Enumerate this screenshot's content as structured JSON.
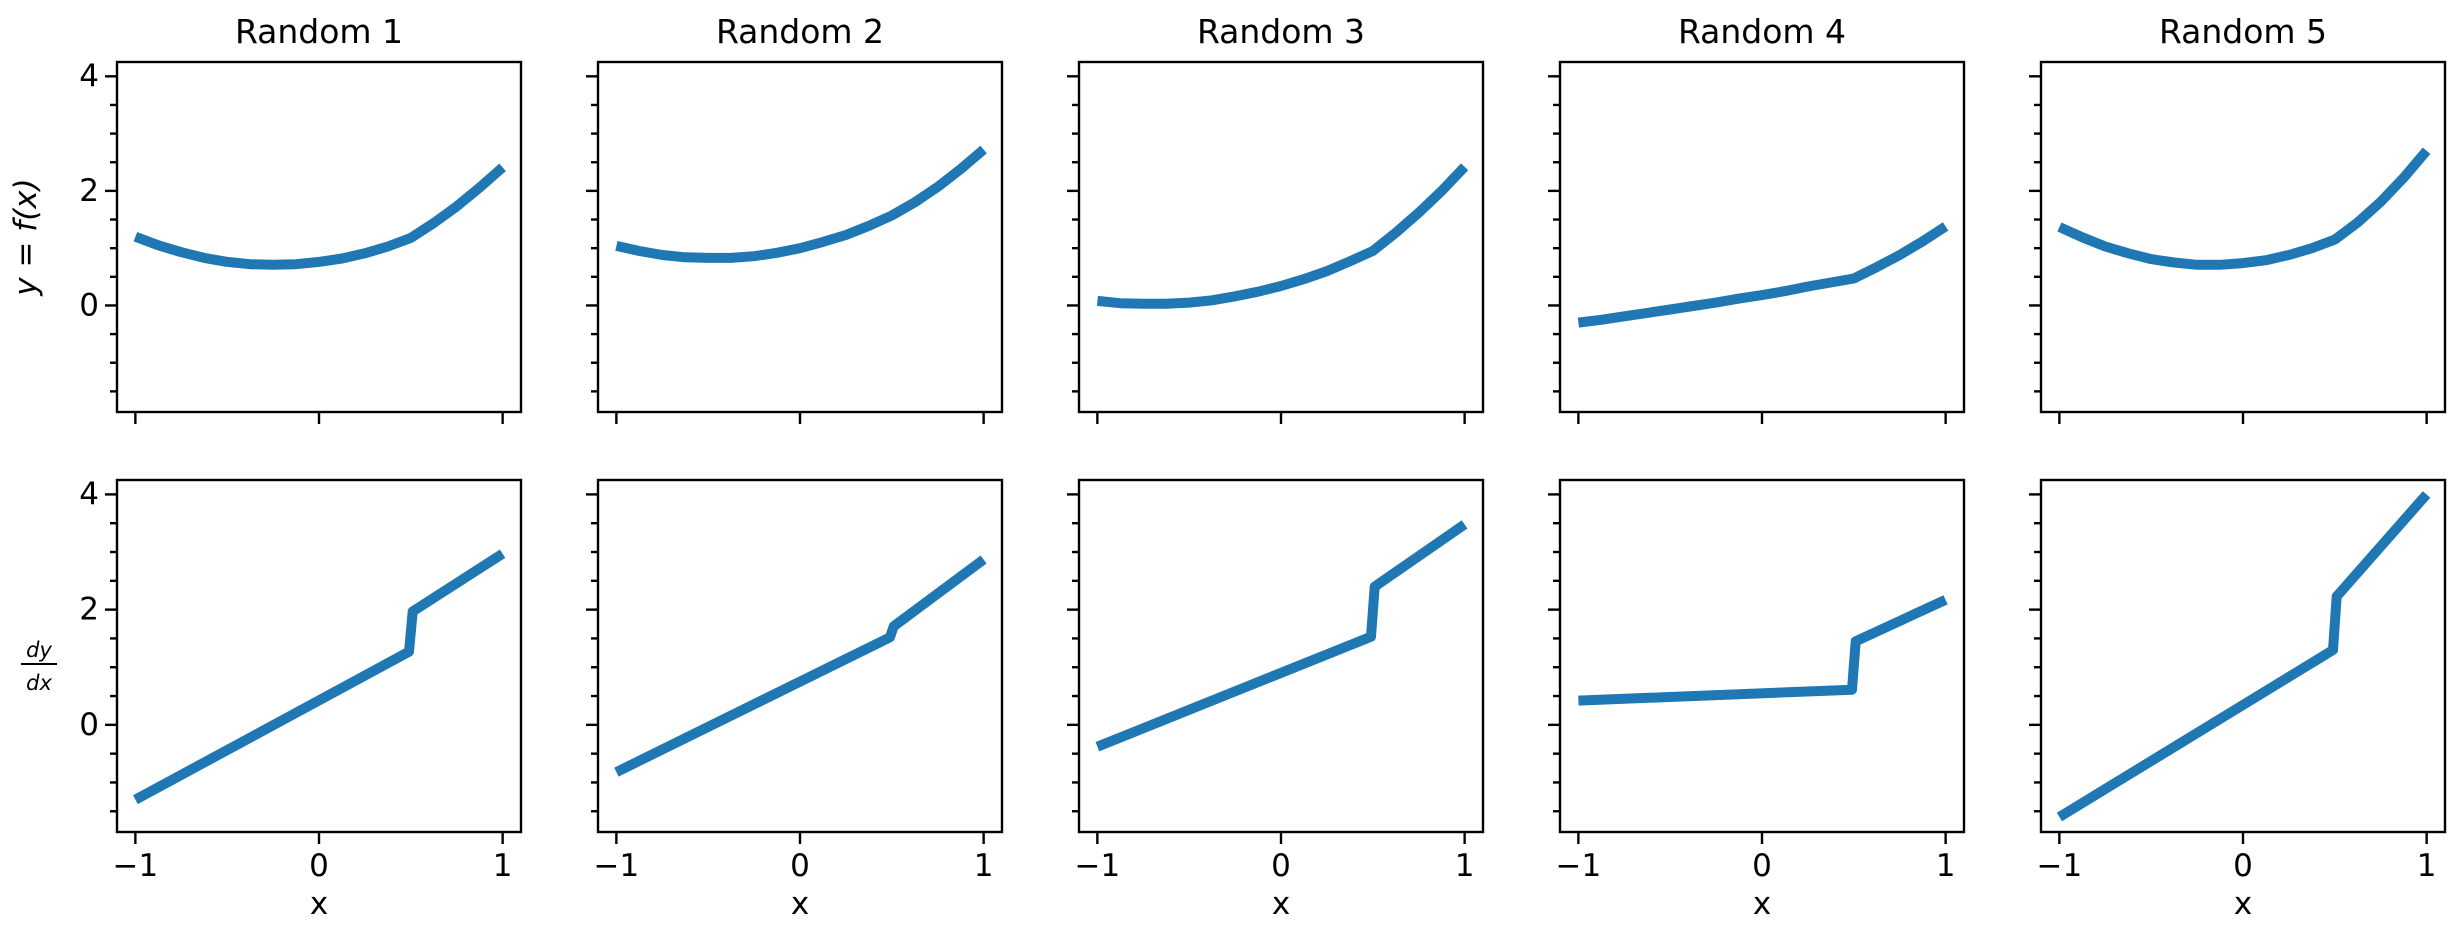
{
  "figure": {
    "background": "#ffffff",
    "line_color": "#1f77b4",
    "axis_color": "#000000",
    "text_color": "#000000"
  },
  "chart_data": {
    "type": "line",
    "grid_layout": "2 rows x 5 columns, shared x and y axes, no gridlines, no legend",
    "xlim": [
      -1.1,
      1.1
    ],
    "ylim": [
      -1.86,
      4.25
    ],
    "x_ticks": [
      -1,
      0,
      1
    ],
    "x_tick_labels": [
      "−1",
      "0",
      "1"
    ],
    "y_ticks": [
      0,
      2,
      4
    ],
    "y_tick_labels": [
      "0",
      "2",
      "4"
    ],
    "y_minor_ticks": [
      -1.5,
      -1.0,
      -0.5,
      0.5,
      1.0,
      1.5,
      2.5,
      3.0,
      3.5
    ],
    "xlabel": "x",
    "ylabel_top": "y = f(x)",
    "ylabel_bottom": "dy/dx",
    "ylabel_bottom_numerator": "dy",
    "ylabel_bottom_denominator": "dx",
    "f_x": [
      -1,
      -0.875,
      -0.75,
      -0.625,
      -0.5,
      -0.375,
      -0.25,
      -0.125,
      0,
      0.125,
      0.25,
      0.375,
      0.5,
      0.625,
      0.75,
      0.875,
      1
    ],
    "df_x": [
      -1,
      0.49,
      0.51,
      1
    ],
    "columns": [
      {
        "title": "Random  1",
        "f_y": [
          1.2,
          1.05,
          0.93,
          0.83,
          0.76,
          0.72,
          0.71,
          0.72,
          0.76,
          0.82,
          0.91,
          1.03,
          1.18,
          1.44,
          1.73,
          2.06,
          2.41
        ],
        "df_y": [
          -1.3,
          1.27,
          1.97,
          2.97
        ]
      },
      {
        "title": "Random  2",
        "f_y": [
          1.04,
          0.95,
          0.88,
          0.84,
          0.83,
          0.83,
          0.86,
          0.92,
          1.0,
          1.11,
          1.23,
          1.39,
          1.57,
          1.8,
          2.07,
          2.38,
          2.72
        ],
        "df_y": [
          -0.82,
          1.52,
          1.71,
          2.87
        ]
      },
      {
        "title": "Random  3",
        "f_y": [
          0.08,
          0.04,
          0.03,
          0.03,
          0.05,
          0.09,
          0.16,
          0.24,
          0.34,
          0.46,
          0.6,
          0.77,
          0.95,
          1.27,
          1.62,
          2.0,
          2.42
        ],
        "df_y": [
          -0.38,
          1.53,
          2.4,
          3.48
        ]
      },
      {
        "title": "Random  4",
        "f_y": [
          -0.3,
          -0.25,
          -0.19,
          -0.13,
          -0.07,
          -0.01,
          0.05,
          0.12,
          0.18,
          0.25,
          0.33,
          0.4,
          0.47,
          0.67,
          0.88,
          1.12,
          1.38
        ],
        "df_y": [
          0.42,
          0.61,
          1.45,
          2.17
        ]
      },
      {
        "title": "Random  5",
        "f_y": [
          1.37,
          1.19,
          1.03,
          0.91,
          0.81,
          0.75,
          0.71,
          0.71,
          0.74,
          0.79,
          0.88,
          1.0,
          1.15,
          1.45,
          1.81,
          2.23,
          2.7
        ],
        "df_y": [
          -1.6,
          1.3,
          2.23,
          4.0
        ]
      }
    ]
  }
}
